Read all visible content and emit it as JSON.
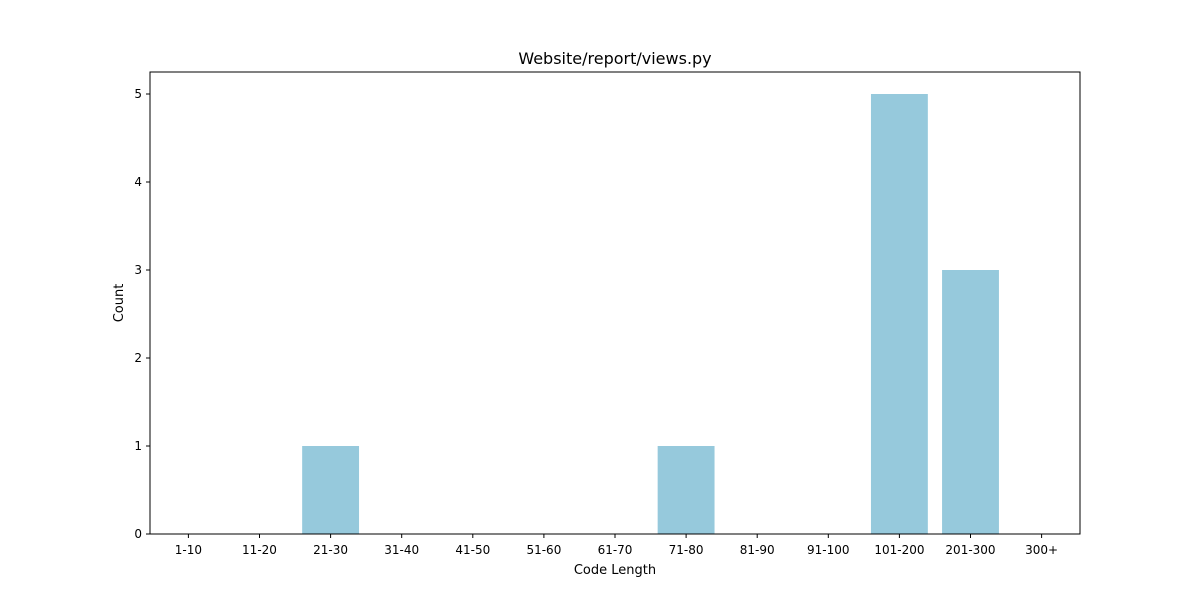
{
  "chart_data": {
    "type": "bar",
    "title": "Website/report/views.py",
    "xlabel": "Code Length",
    "ylabel": "Count",
    "categories": [
      "1-10",
      "11-20",
      "21-30",
      "31-40",
      "41-50",
      "51-60",
      "61-70",
      "71-80",
      "81-90",
      "91-100",
      "101-200",
      "201-300",
      "300+"
    ],
    "values": [
      0,
      0,
      1,
      0,
      0,
      0,
      0,
      1,
      0,
      0,
      5,
      3,
      0
    ],
    "ylim": [
      0,
      5.25
    ],
    "yticks": [
      "0",
      "1",
      "2",
      "3",
      "4",
      "5"
    ],
    "grid": false,
    "bar_color": "#96c9dc"
  }
}
